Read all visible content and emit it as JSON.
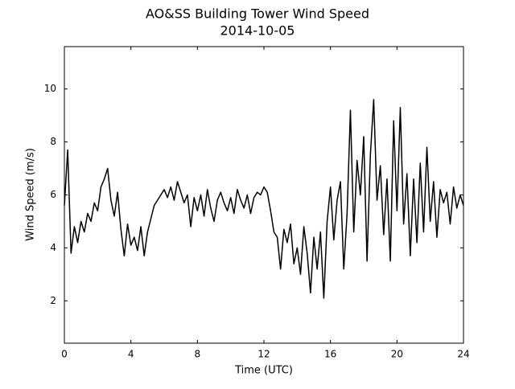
{
  "chart_data": {
    "type": "line",
    "title": "AO&SS Building Tower Wind Speed",
    "subtitle": "2014-10-05",
    "x_label": "Time (UTC)",
    "y_label": "Wind Speed (m/s)",
    "color": "#000000",
    "x": [
      0,
      0.2,
      0.4,
      0.6,
      0.8,
      1,
      1.2,
      1.4,
      1.6,
      1.8,
      2,
      2.2,
      2.4,
      2.6,
      2.8,
      3,
      3.2,
      3.4,
      3.6,
      3.8,
      4,
      4.2,
      4.4,
      4.6,
      4.8,
      5,
      5.2,
      5.4,
      5.6,
      5.8,
      6,
      6.2,
      6.4,
      6.6,
      6.8,
      7,
      7.2,
      7.4,
      7.6,
      7.8,
      8,
      8.2,
      8.4,
      8.6,
      8.8,
      9,
      9.2,
      9.4,
      9.6,
      9.8,
      10,
      10.2,
      10.4,
      10.6,
      10.8,
      11,
      11.2,
      11.4,
      11.6,
      11.8,
      12,
      12.2,
      12.4,
      12.6,
      12.8,
      13,
      13.2,
      13.4,
      13.6,
      13.8,
      14,
      14.2,
      14.4,
      14.6,
      14.8,
      15,
      15.2,
      15.4,
      15.6,
      15.8,
      16,
      16.2,
      16.4,
      16.6,
      16.8,
      17,
      17.2,
      17.4,
      17.6,
      17.8,
      18,
      18.2,
      18.4,
      18.6,
      18.8,
      19,
      19.2,
      19.4,
      19.6,
      19.8,
      20,
      20.2,
      20.4,
      20.6,
      20.8,
      21,
      21.2,
      21.4,
      21.6,
      21.8,
      22,
      22.2,
      22.4,
      22.6,
      22.8,
      23,
      23.2,
      23.4,
      23.6,
      23.8,
      24
    ],
    "values": [
      5.6,
      7.7,
      3.8,
      4.8,
      4.2,
      5.0,
      4.6,
      5.3,
      5.0,
      5.7,
      5.4,
      6.3,
      6.6,
      7.0,
      5.8,
      5.2,
      6.1,
      4.7,
      3.7,
      4.9,
      4.1,
      4.4,
      3.9,
      4.8,
      3.7,
      4.6,
      5.1,
      5.6,
      5.8,
      6.0,
      6.2,
      5.9,
      6.3,
      5.8,
      6.5,
      6.1,
      5.7,
      6.0,
      4.8,
      5.9,
      5.4,
      6.0,
      5.2,
      6.2,
      5.5,
      5.0,
      5.8,
      6.1,
      5.7,
      5.4,
      5.9,
      5.3,
      6.2,
      5.8,
      5.5,
      6.0,
      5.3,
      5.9,
      6.1,
      6.0,
      6.3,
      6.1,
      5.4,
      4.6,
      4.4,
      3.2,
      4.7,
      4.2,
      4.9,
      3.4,
      4.0,
      3.0,
      4.8,
      3.8,
      2.3,
      4.4,
      3.2,
      4.6,
      2.1,
      5.0,
      6.3,
      4.3,
      5.8,
      6.5,
      3.2,
      5.3,
      9.2,
      4.6,
      7.3,
      6.0,
      8.2,
      3.5,
      7.5,
      9.6,
      5.8,
      7.1,
      4.5,
      6.6,
      3.5,
      8.8,
      5.4,
      9.3,
      4.9,
      6.8,
      3.7,
      6.6,
      4.2,
      7.2,
      4.6,
      7.8,
      5.0,
      6.5,
      4.4,
      6.2,
      5.7,
      6.1,
      4.9,
      6.3,
      5.5,
      6.0,
      5.6
    ],
    "xlim": [
      0,
      24
    ],
    "xticks": [
      0,
      4,
      8,
      12,
      16,
      20,
      24
    ],
    "ylim": [
      0.4,
      11.6
    ],
    "yticks": [
      2,
      4,
      6,
      8,
      10
    ]
  }
}
